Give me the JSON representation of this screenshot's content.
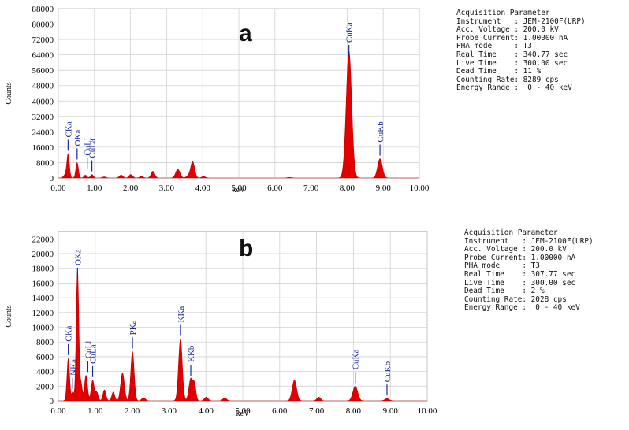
{
  "chart_data": [
    {
      "type": "area",
      "panel_label": "a",
      "xlabel": "keV",
      "ylabel": "Counts",
      "xlim": [
        0,
        10
      ],
      "ylim": [
        0,
        88000
      ],
      "x_ticks": [
        "0.00",
        "1.00",
        "2.00",
        "3.00",
        "4.00",
        "5.00",
        "6.00",
        "7.00",
        "8.00",
        "9.00",
        "10.00"
      ],
      "y_ticks": [
        "0",
        "8000",
        "16000",
        "24000",
        "32000",
        "40000",
        "48000",
        "56000",
        "64000",
        "72000",
        "80000",
        "88000"
      ],
      "grid": true,
      "fill_color": "#e00000",
      "peaks": [
        {
          "x": 0.18,
          "y": 1500,
          "w": 0.04
        },
        {
          "x": 0.27,
          "y": 12500,
          "w": 0.035
        },
        {
          "x": 0.52,
          "y": 8000,
          "w": 0.035
        },
        {
          "x": 0.75,
          "y": 1500,
          "w": 0.04
        },
        {
          "x": 0.93,
          "y": 1800,
          "w": 0.04
        },
        {
          "x": 1.27,
          "y": 600,
          "w": 0.05
        },
        {
          "x": 1.74,
          "y": 1500,
          "w": 0.05
        },
        {
          "x": 2.01,
          "y": 1800,
          "w": 0.05
        },
        {
          "x": 2.3,
          "y": 800,
          "w": 0.05
        },
        {
          "x": 2.62,
          "y": 3500,
          "w": 0.05
        },
        {
          "x": 3.31,
          "y": 4500,
          "w": 0.06
        },
        {
          "x": 3.59,
          "y": 1000,
          "w": 0.05
        },
        {
          "x": 3.72,
          "y": 8500,
          "w": 0.055
        },
        {
          "x": 4.02,
          "y": 800,
          "w": 0.05
        },
        {
          "x": 6.4,
          "y": 300,
          "w": 0.06
        },
        {
          "x": 8.05,
          "y": 66000,
          "w": 0.075
        },
        {
          "x": 8.91,
          "y": 10000,
          "w": 0.065
        }
      ],
      "labels": [
        {
          "text": "CKa",
          "x": 0.27,
          "y": 12500
        },
        {
          "text": "OKa",
          "x": 0.52,
          "y": 8000
        },
        {
          "text": "CuLl",
          "x": 0.8,
          "y": 3000
        },
        {
          "text": "CuLa",
          "x": 0.93,
          "y": 1800
        },
        {
          "text": "CuKa",
          "x": 8.05,
          "y": 66000
        },
        {
          "text": "CuKb",
          "x": 8.91,
          "y": 10000
        }
      ]
    },
    {
      "type": "area",
      "panel_label": "b",
      "xlabel": "keV",
      "ylabel": "Counts",
      "xlim": [
        0,
        10
      ],
      "ylim": [
        0,
        23000
      ],
      "x_ticks": [
        "0.00",
        "1.00",
        "2.00",
        "3.00",
        "4.00",
        "5.00",
        "6.00",
        "7.00",
        "8.00",
        "9.00",
        "10.00"
      ],
      "y_ticks": [
        "0",
        "2000",
        "4000",
        "6000",
        "8000",
        "10000",
        "12000",
        "14000",
        "16000",
        "18000",
        "20000",
        "22000"
      ],
      "grid": true,
      "fill_color": "#e00000",
      "peaks": [
        {
          "x": 0.27,
          "y": 5800,
          "w": 0.035
        },
        {
          "x": 0.39,
          "y": 1200,
          "w": 0.03
        },
        {
          "x": 0.52,
          "y": 17800,
          "w": 0.035
        },
        {
          "x": 0.62,
          "y": 2200,
          "w": 0.03
        },
        {
          "x": 0.75,
          "y": 3500,
          "w": 0.04
        },
        {
          "x": 0.93,
          "y": 2800,
          "w": 0.04
        },
        {
          "x": 1.04,
          "y": 1200,
          "w": 0.04
        },
        {
          "x": 1.25,
          "y": 1500,
          "w": 0.04
        },
        {
          "x": 1.49,
          "y": 1200,
          "w": 0.04
        },
        {
          "x": 1.74,
          "y": 3800,
          "w": 0.05
        },
        {
          "x": 2.01,
          "y": 6700,
          "w": 0.045
        },
        {
          "x": 2.31,
          "y": 400,
          "w": 0.05
        },
        {
          "x": 3.31,
          "y": 8400,
          "w": 0.05
        },
        {
          "x": 3.59,
          "y": 3000,
          "w": 0.05
        },
        {
          "x": 3.69,
          "y": 2200,
          "w": 0.04
        },
        {
          "x": 4.01,
          "y": 500,
          "w": 0.05
        },
        {
          "x": 4.51,
          "y": 400,
          "w": 0.05
        },
        {
          "x": 6.4,
          "y": 2800,
          "w": 0.06
        },
        {
          "x": 7.06,
          "y": 500,
          "w": 0.05
        },
        {
          "x": 8.05,
          "y": 2000,
          "w": 0.065
        },
        {
          "x": 8.91,
          "y": 300,
          "w": 0.06
        }
      ],
      "labels": [
        {
          "text": "CKa",
          "x": 0.27,
          "y": 5800
        },
        {
          "text": "NKa",
          "x": 0.39,
          "y": 1200
        },
        {
          "text": "OKa",
          "x": 0.52,
          "y": 17800
        },
        {
          "text": "CuLl",
          "x": 0.8,
          "y": 3500
        },
        {
          "text": "CuLa",
          "x": 0.93,
          "y": 2800
        },
        {
          "text": "PKa",
          "x": 2.01,
          "y": 6700
        },
        {
          "text": "KKa",
          "x": 3.31,
          "y": 8400
        },
        {
          "text": "KKb",
          "x": 3.59,
          "y": 3000
        },
        {
          "text": "CuKa",
          "x": 8.05,
          "y": 2000
        },
        {
          "text": "CuKb",
          "x": 8.91,
          "y": 300
        }
      ]
    }
  ],
  "params": {
    "a": [
      "Acquisition Parameter",
      "Instrument   : JEM-2100F(URP)",
      "Acc. Voltage : 200.0 kV",
      "Probe Current: 1.00000 nA",
      "PHA mode     : T3",
      "Real Time    : 340.77 sec",
      "Live Time    : 300.00 sec",
      "Dead Time    : 11 %",
      "Counting Rate: 8289 cps",
      "Energy Range :  0 - 40 keV"
    ],
    "b": [
      "Acquisition Parameter",
      "Instrument   : JEM-2100F(URP)",
      "Acc. Voltage : 200.0 kV",
      "Probe Current: 1.00000 nA",
      "PHA mode     : T3",
      "Real Time    : 307.77 sec",
      "Live Time    : 300.00 sec",
      "Dead Time    : 2 %",
      "Counting Rate: 2028 cps",
      "Energy Range :  0 - 40 keV"
    ]
  }
}
